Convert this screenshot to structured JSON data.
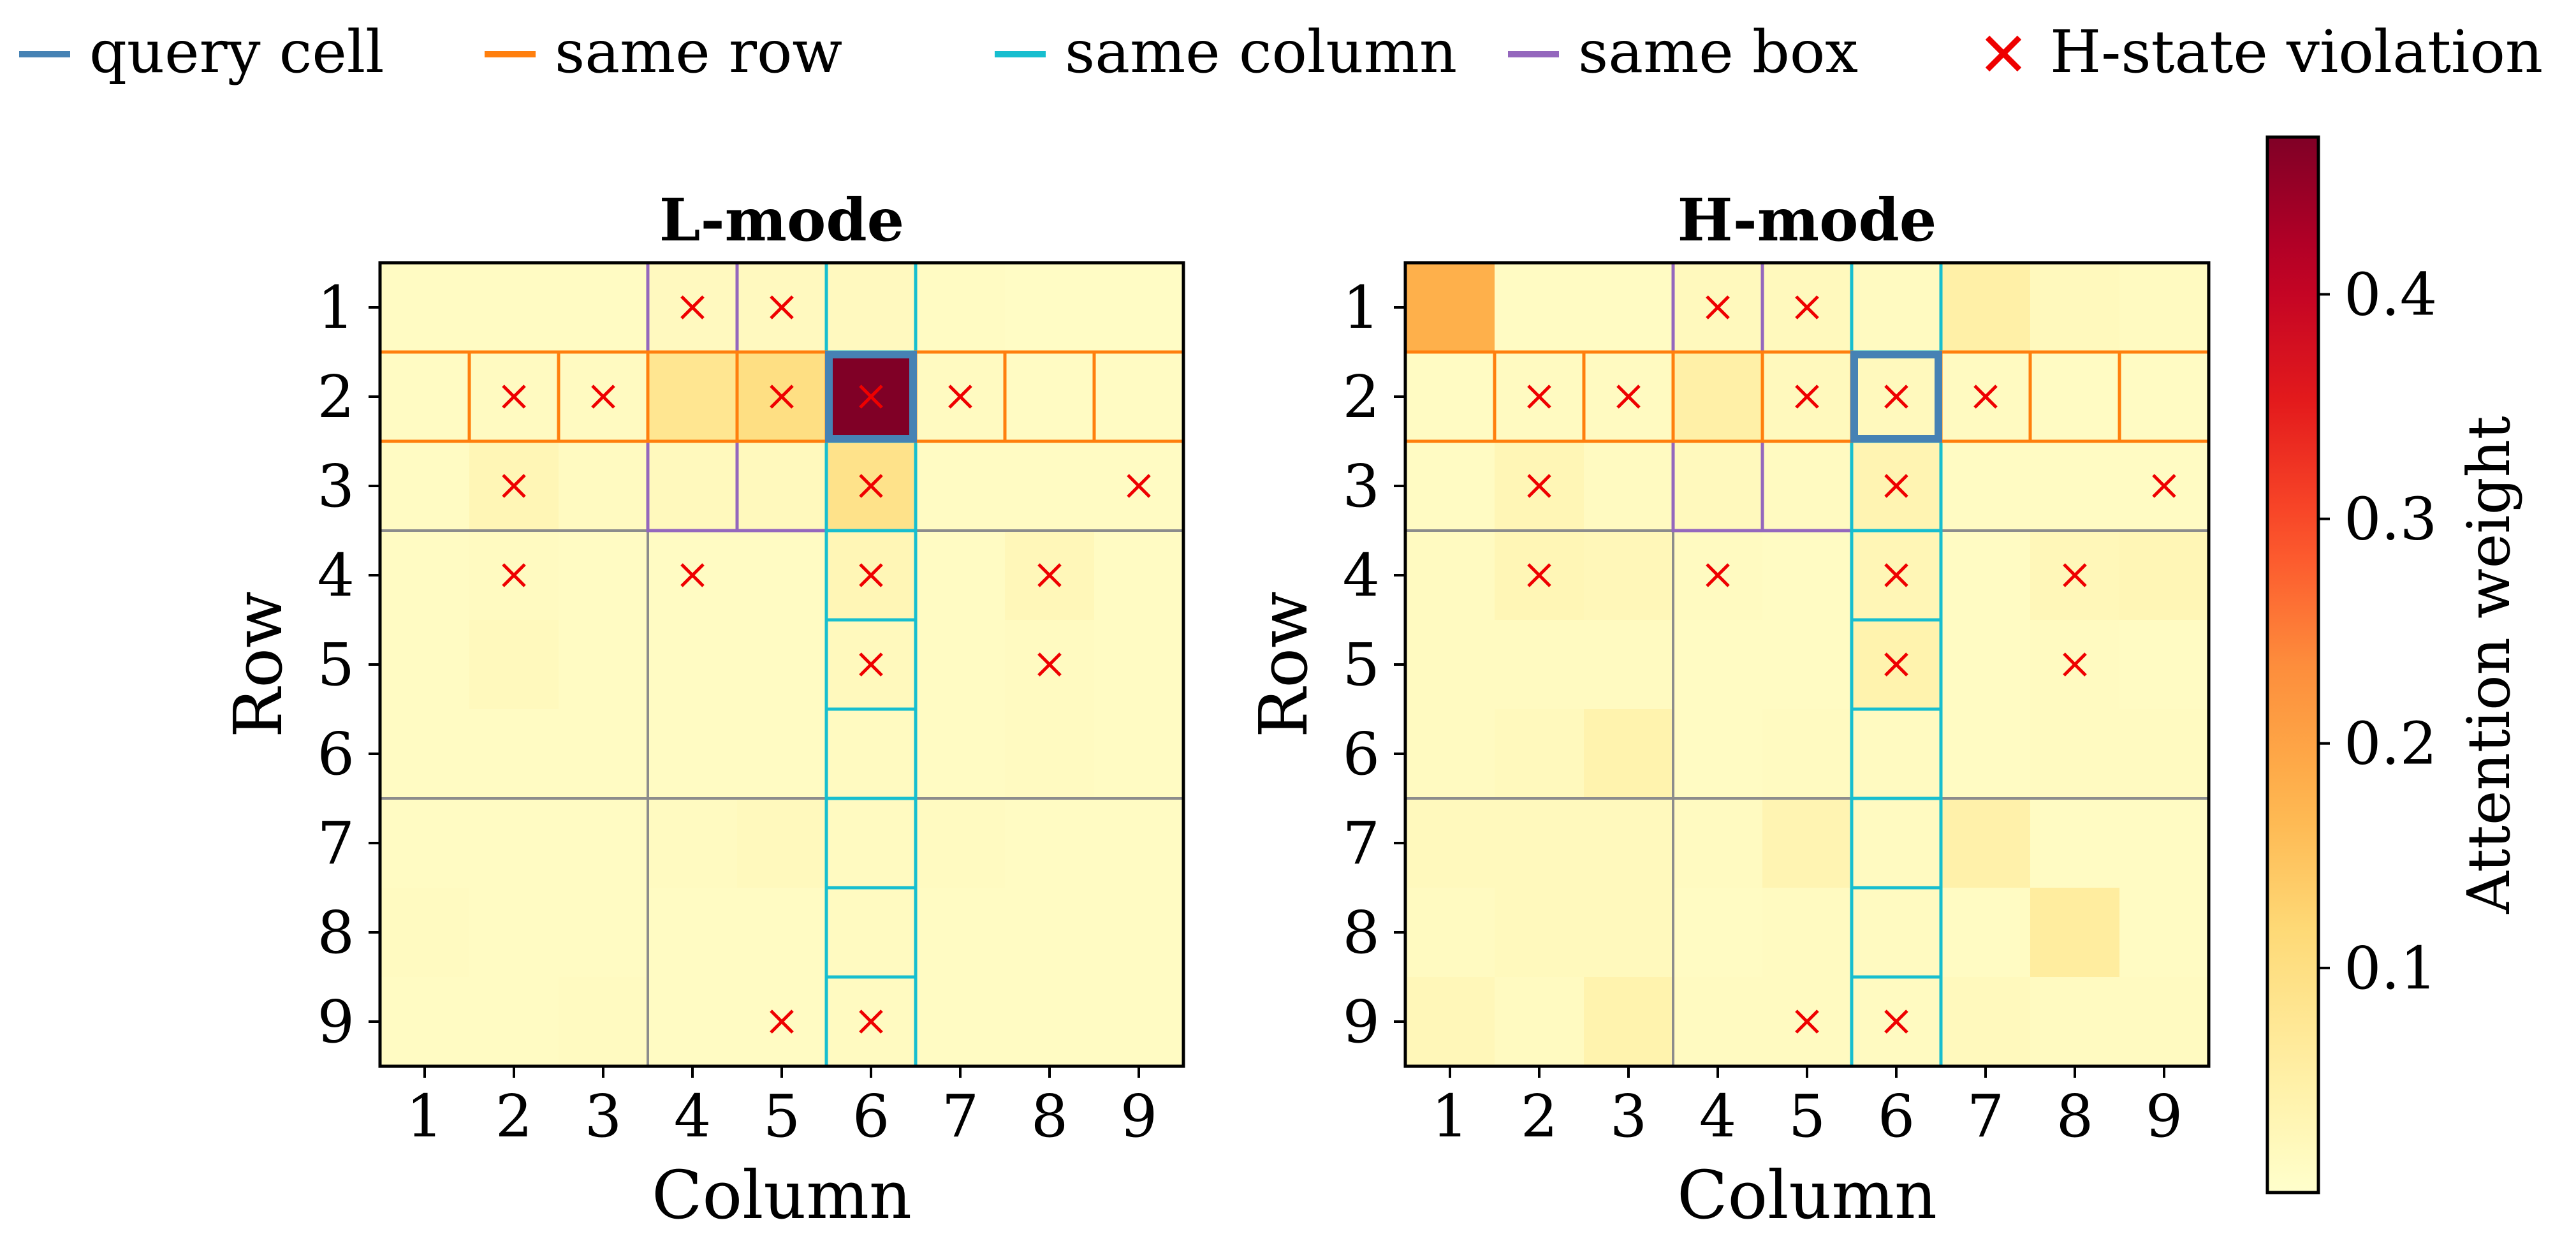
{
  "legend": {
    "items": [
      {
        "key": "query",
        "label": "query cell",
        "color": "#4682b4",
        "marker": "line"
      },
      {
        "key": "row",
        "label": "same row",
        "color": "#ff7f0e",
        "marker": "line"
      },
      {
        "key": "col",
        "label": "same column",
        "color": "#17becf",
        "marker": "line"
      },
      {
        "key": "box",
        "label": "same box",
        "color": "#9467bd",
        "marker": "line"
      },
      {
        "key": "viol",
        "label": "H-state violation",
        "color": "#ee0000",
        "marker": "x"
      }
    ]
  },
  "colorbar": {
    "label": "Attention weight",
    "ticks": [
      "0.1",
      "0.2",
      "0.3",
      "0.4"
    ],
    "tick_values": [
      0.1,
      0.2,
      0.3,
      0.4
    ],
    "vmin": 0.0,
    "vmax": 0.47,
    "colormap": "YlOrRd"
  },
  "chart_data": [
    {
      "type": "heatmap",
      "title": "L-mode",
      "xlabel": "Column",
      "ylabel": "Row",
      "x_ticks": [
        "1",
        "2",
        "3",
        "4",
        "5",
        "6",
        "7",
        "8",
        "9"
      ],
      "y_ticks": [
        "1",
        "2",
        "3",
        "4",
        "5",
        "6",
        "7",
        "8",
        "9"
      ],
      "query_cell": [
        2,
        6
      ],
      "values": [
        [
          0.012,
          0.012,
          0.012,
          0.018,
          0.018,
          0.018,
          0.012,
          0.01,
          0.01
        ],
        [
          0.012,
          0.015,
          0.015,
          0.08,
          0.1,
          0.47,
          0.015,
          0.012,
          0.012
        ],
        [
          0.012,
          0.03,
          0.015,
          0.02,
          0.02,
          0.09,
          0.012,
          0.012,
          0.012
        ],
        [
          0.012,
          0.015,
          0.012,
          0.012,
          0.012,
          0.03,
          0.012,
          0.025,
          0.012
        ],
        [
          0.012,
          0.02,
          0.012,
          0.012,
          0.012,
          0.02,
          0.012,
          0.015,
          0.012
        ],
        [
          0.012,
          0.012,
          0.012,
          0.012,
          0.012,
          0.015,
          0.012,
          0.015,
          0.012
        ],
        [
          0.012,
          0.012,
          0.012,
          0.015,
          0.02,
          0.015,
          0.015,
          0.012,
          0.012
        ],
        [
          0.015,
          0.012,
          0.012,
          0.012,
          0.012,
          0.015,
          0.012,
          0.012,
          0.012
        ],
        [
          0.012,
          0.012,
          0.015,
          0.012,
          0.012,
          0.015,
          0.012,
          0.012,
          0.012
        ]
      ],
      "violations": [
        [
          1,
          4
        ],
        [
          1,
          5
        ],
        [
          2,
          2
        ],
        [
          2,
          3
        ],
        [
          2,
          5
        ],
        [
          2,
          6
        ],
        [
          2,
          7
        ],
        [
          3,
          2
        ],
        [
          3,
          6
        ],
        [
          3,
          9
        ],
        [
          4,
          2
        ],
        [
          4,
          4
        ],
        [
          4,
          6
        ],
        [
          4,
          8
        ],
        [
          5,
          6
        ],
        [
          5,
          8
        ],
        [
          9,
          5
        ],
        [
          9,
          6
        ]
      ]
    },
    {
      "type": "heatmap",
      "title": "H-mode",
      "xlabel": "Column",
      "ylabel": "Row",
      "x_ticks": [
        "1",
        "2",
        "3",
        "4",
        "5",
        "6",
        "7",
        "8",
        "9"
      ],
      "y_ticks": [
        "1",
        "2",
        "3",
        "4",
        "5",
        "6",
        "7",
        "8",
        "9"
      ],
      "query_cell": [
        2,
        6
      ],
      "values": [
        [
          0.18,
          0.012,
          0.012,
          0.02,
          0.02,
          0.015,
          0.05,
          0.02,
          0.015
        ],
        [
          0.012,
          0.015,
          0.015,
          0.05,
          0.02,
          0.02,
          0.015,
          0.012,
          0.012
        ],
        [
          0.012,
          0.03,
          0.015,
          0.02,
          0.015,
          0.035,
          0.012,
          0.012,
          0.012
        ],
        [
          0.015,
          0.03,
          0.025,
          0.015,
          0.012,
          0.03,
          0.012,
          0.025,
          0.03
        ],
        [
          0.015,
          0.015,
          0.015,
          0.012,
          0.012,
          0.04,
          0.012,
          0.015,
          0.012
        ],
        [
          0.015,
          0.02,
          0.04,
          0.012,
          0.015,
          0.015,
          0.012,
          0.015,
          0.015
        ],
        [
          0.02,
          0.02,
          0.02,
          0.015,
          0.035,
          0.015,
          0.045,
          0.012,
          0.012
        ],
        [
          0.015,
          0.02,
          0.02,
          0.012,
          0.015,
          0.015,
          0.012,
          0.06,
          0.012
        ],
        [
          0.025,
          0.015,
          0.04,
          0.015,
          0.015,
          0.015,
          0.02,
          0.015,
          0.015
        ]
      ],
      "violations": [
        [
          1,
          4
        ],
        [
          1,
          5
        ],
        [
          2,
          2
        ],
        [
          2,
          3
        ],
        [
          2,
          5
        ],
        [
          2,
          6
        ],
        [
          2,
          7
        ],
        [
          3,
          2
        ],
        [
          3,
          6
        ],
        [
          3,
          9
        ],
        [
          4,
          2
        ],
        [
          4,
          4
        ],
        [
          4,
          6
        ],
        [
          4,
          8
        ],
        [
          5,
          6
        ],
        [
          5,
          8
        ],
        [
          9,
          5
        ],
        [
          9,
          6
        ]
      ]
    }
  ]
}
